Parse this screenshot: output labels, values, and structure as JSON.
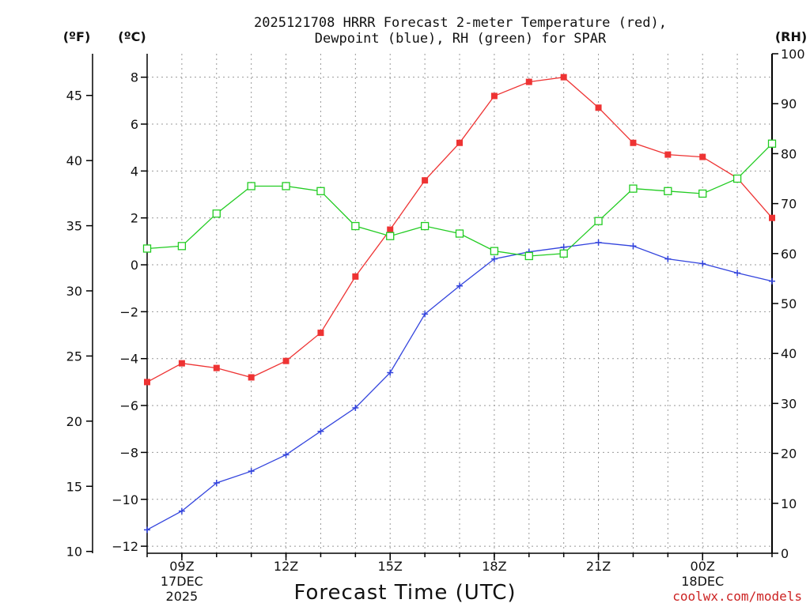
{
  "chart_data": {
    "type": "line",
    "title_line1": "2025121708 HRRR Forecast 2-meter Temperature (red),",
    "title_line2": "Dewpoint (blue), RH (green) for SPAR",
    "xlabel": "Forecast Time (UTC)",
    "credit": "coolwx.com/models",
    "units": {
      "left_outer": "(ºF)",
      "left_inner": "(ºC)",
      "right": "(RH)"
    },
    "x": [
      8,
      9,
      10,
      11,
      12,
      13,
      14,
      15,
      16,
      17,
      18,
      19,
      20,
      21,
      22,
      23,
      24,
      25,
      26
    ],
    "xlim": [
      8,
      26
    ],
    "x_ticks": [
      {
        "x": 9,
        "label": "09Z",
        "line2": "17DEC",
        "line3": "2025"
      },
      {
        "x": 12,
        "label": "12Z",
        "line2": "",
        "line3": ""
      },
      {
        "x": 15,
        "label": "15Z",
        "line2": "",
        "line3": ""
      },
      {
        "x": 18,
        "label": "18Z",
        "line2": "",
        "line3": ""
      },
      {
        "x": 21,
        "label": "21Z",
        "line2": "",
        "line3": ""
      },
      {
        "x": 24,
        "label": "00Z",
        "line2": "18DEC",
        "line3": ""
      }
    ],
    "ylim_c": [
      -12.3,
      9.0
    ],
    "ylim_rh": [
      0,
      100
    ],
    "c_ticks": [
      "−12",
      "−10",
      "−8",
      "−6",
      "−4",
      "−2",
      "0",
      "2",
      "4",
      "6",
      "8"
    ],
    "c_tick_values": [
      -12,
      -10,
      -8,
      -6,
      -4,
      -2,
      0,
      2,
      4,
      6,
      8
    ],
    "f_ticks": [
      "10",
      "15",
      "20",
      "25",
      "30",
      "35",
      "40",
      "45"
    ],
    "f_tick_values": [
      10,
      15,
      20,
      25,
      30,
      35,
      40,
      45
    ],
    "rh_ticks": [
      "0",
      "10",
      "20",
      "30",
      "40",
      "50",
      "60",
      "70",
      "80",
      "90",
      "100"
    ],
    "rh_tick_values": [
      0,
      10,
      20,
      30,
      40,
      50,
      60,
      70,
      80,
      90,
      100
    ],
    "series": [
      {
        "name": "Temperature",
        "axis": "C",
        "color": "#ee3333",
        "marker": "filled-square",
        "values": [
          -5.0,
          -4.2,
          -4.4,
          -4.8,
          -4.1,
          -2.9,
          -0.5,
          1.5,
          3.6,
          5.2,
          7.2,
          7.8,
          8.0,
          6.7,
          5.2,
          4.7,
          4.6,
          3.7,
          2.0
        ]
      },
      {
        "name": "Dewpoint",
        "axis": "C",
        "color": "#3344dd",
        "marker": "plus",
        "values": [
          -11.3,
          -10.5,
          -9.3,
          -8.8,
          -8.1,
          -7.1,
          -6.1,
          -4.6,
          -2.1,
          -0.9,
          0.25,
          0.55,
          0.75,
          0.95,
          0.8,
          0.25,
          0.05,
          -0.35,
          -0.7
        ]
      },
      {
        "name": "RH",
        "axis": "RH",
        "color": "#22cc22",
        "marker": "open-square",
        "values": [
          61,
          61.5,
          68,
          73.5,
          73.5,
          72.5,
          65.5,
          63.5,
          65.5,
          64,
          60.5,
          59.5,
          60,
          66.5,
          73,
          72.5,
          72,
          75,
          82
        ]
      }
    ]
  }
}
